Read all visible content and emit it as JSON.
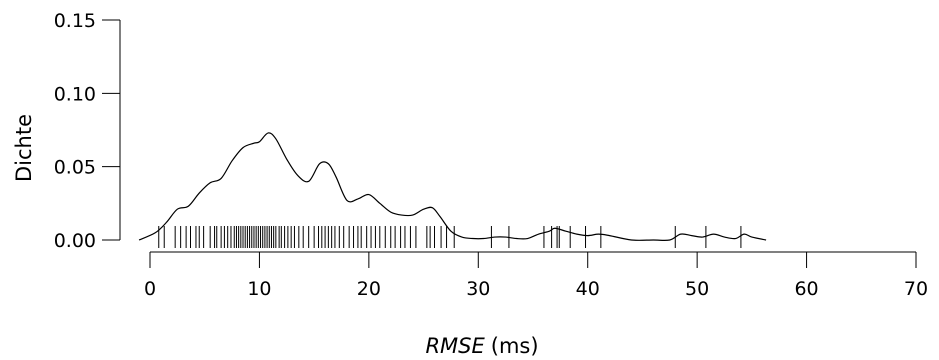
{
  "chart_data": {
    "type": "density",
    "xlabel": "RMSE",
    "xlabel_unit": "(ms)",
    "ylabel": "Dichte",
    "xlim": [
      0,
      70
    ],
    "ylim": [
      0,
      0.15
    ],
    "xticks": [
      0,
      10,
      20,
      30,
      40,
      50,
      60,
      70
    ],
    "yticks": [
      0.0,
      0.05,
      0.1,
      0.15
    ],
    "xtick_labels": [
      "0",
      "10",
      "20",
      "30",
      "40",
      "50",
      "60",
      "70"
    ],
    "ytick_labels": [
      "0.00",
      "0.05",
      "0.10",
      "0.15"
    ],
    "grid": false,
    "line_color": "#000000",
    "density_curve": {
      "x": [
        -1.0,
        0.5,
        1.5,
        2.5,
        3.5,
        4.5,
        5.5,
        6.5,
        7.5,
        8.5,
        9.5,
        10.0,
        10.8,
        11.5,
        12.5,
        13.5,
        14.5,
        15.5,
        16.3,
        17.0,
        18.0,
        19.0,
        20.0,
        21.0,
        22.0,
        23.0,
        24.0,
        25.0,
        25.8,
        26.5,
        27.5,
        28.5,
        29.5,
        30.5,
        31.5,
        32.5,
        33.5,
        34.5,
        35.5,
        36.5,
        37.0,
        38.0,
        39.0,
        40.0,
        41.0,
        42.0,
        44.0,
        46.0,
        47.5,
        48.5,
        49.5,
        50.5,
        51.5,
        52.5,
        53.5,
        54.3,
        55.0,
        56.3
      ],
      "y": [
        0.0,
        0.005,
        0.012,
        0.021,
        0.023,
        0.032,
        0.039,
        0.042,
        0.054,
        0.063,
        0.066,
        0.067,
        0.073,
        0.069,
        0.055,
        0.044,
        0.04,
        0.052,
        0.052,
        0.043,
        0.027,
        0.028,
        0.031,
        0.025,
        0.019,
        0.017,
        0.017,
        0.021,
        0.022,
        0.016,
        0.006,
        0.002,
        0.001,
        0.001,
        0.002,
        0.002,
        0.001,
        0.001,
        0.004,
        0.006,
        0.008,
        0.006,
        0.004,
        0.003,
        0.004,
        0.003,
        0.0,
        0.0,
        0.0,
        0.004,
        0.003,
        0.002,
        0.004,
        0.002,
        0.001,
        0.004,
        0.002,
        0.0
      ]
    },
    "rug_values": [
      0.8,
      1.3,
      2.3,
      2.8,
      3.3,
      3.7,
      4.2,
      4.5,
      4.9,
      5.5,
      5.9,
      6.1,
      6.5,
      6.8,
      7.1,
      7.4,
      7.7,
      7.9,
      8.1,
      8.3,
      8.5,
      8.7,
      8.9,
      9.1,
      9.3,
      9.5,
      9.7,
      9.9,
      10.1,
      10.3,
      10.5,
      10.7,
      10.9,
      11.1,
      11.3,
      11.5,
      11.8,
      12.0,
      12.3,
      12.6,
      12.9,
      13.2,
      13.6,
      14.0,
      14.5,
      15.0,
      15.4,
      15.7,
      16.0,
      16.3,
      16.6,
      16.9,
      17.3,
      17.7,
      18.2,
      18.6,
      19.0,
      19.3,
      19.8,
      20.2,
      20.6,
      21.0,
      21.5,
      22.0,
      22.4,
      22.9,
      23.3,
      23.8,
      24.3,
      25.3,
      25.6,
      26.0,
      26.6,
      27.1,
      27.8,
      31.2,
      32.8,
      36.0,
      36.7,
      37.2,
      37.4,
      38.4,
      39.8,
      41.2,
      48.0,
      50.8,
      54.0
    ]
  }
}
